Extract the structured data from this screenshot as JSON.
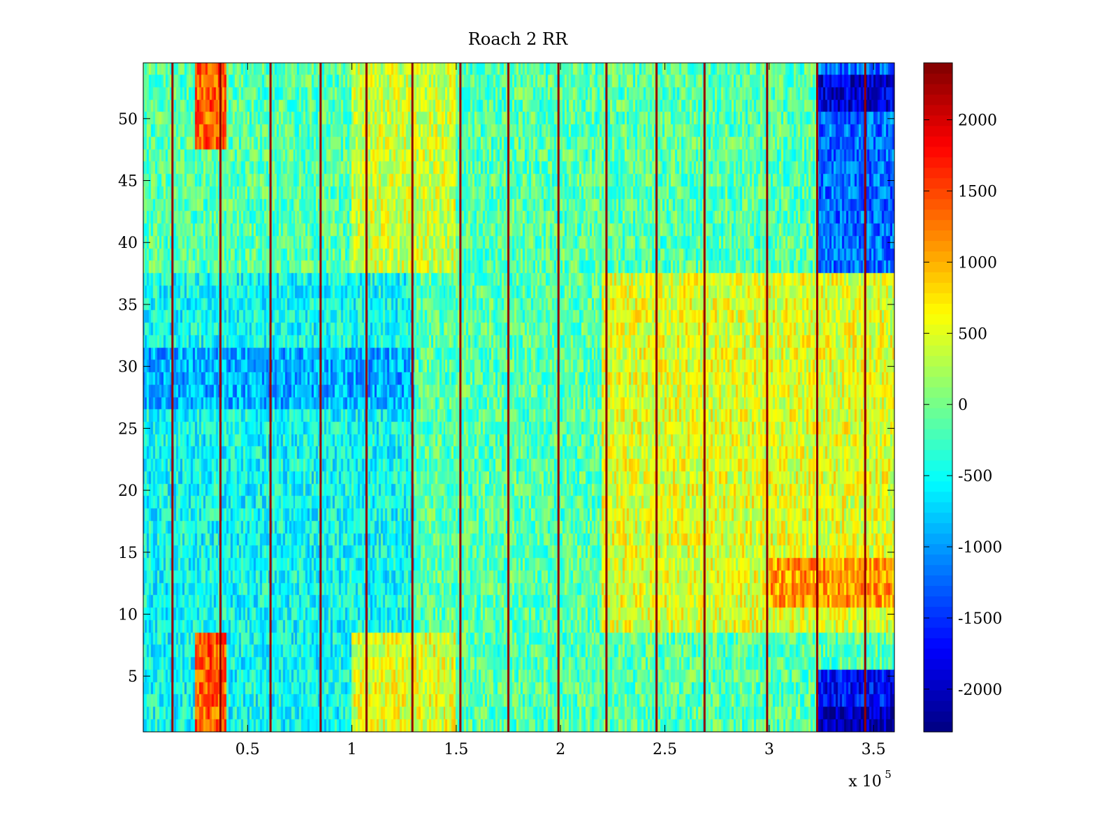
{
  "chart_data": {
    "type": "heatmap",
    "title": "Roach 2 RR",
    "xlabel": "",
    "ylabel": "",
    "x_exponent_label": "x 10",
    "x_exponent": "5",
    "xlim": [
      0.0,
      3.6
    ],
    "ylim": [
      0.5,
      54.5
    ],
    "x_ticks": [
      0.5,
      1,
      1.5,
      2,
      2.5,
      3,
      3.5
    ],
    "x_tick_labels": [
      "0.5",
      "1",
      "1.5",
      "2",
      "2.5",
      "3",
      "3.5"
    ],
    "y_ticks": [
      5,
      10,
      15,
      20,
      25,
      30,
      35,
      40,
      45,
      50
    ],
    "y_tick_labels": [
      "5",
      "10",
      "15",
      "20",
      "25",
      "30",
      "35",
      "40",
      "45",
      "50"
    ],
    "rows": 54,
    "colorbar": {
      "colormap": "jet",
      "clim": [
        -2300,
        2400
      ],
      "ticks": [
        -2000,
        -1500,
        -1000,
        -500,
        0,
        500,
        1000,
        1500,
        2000
      ],
      "tick_labels": [
        "-2000",
        "-1500",
        "-1000",
        "-500",
        "0",
        "500",
        "1000",
        "1500",
        "2000"
      ]
    },
    "vertical_stripe_x": [
      0.14,
      0.37,
      0.61,
      0.85,
      1.07,
      1.29,
      1.52,
      1.75,
      1.99,
      2.22,
      2.46,
      2.69,
      2.99,
      3.23,
      3.46
    ],
    "stripe_value": 2300,
    "regions": [
      {
        "name": "left-band-low",
        "x": [
          0.0,
          1.3
        ],
        "y": [
          0.5,
          37.5
        ],
        "value": -500
      },
      {
        "name": "low-rows-left",
        "x": [
          0.0,
          1.3
        ],
        "y": [
          27.0,
          31.5
        ],
        "value": -900
      },
      {
        "name": "hot-top-left",
        "x": [
          0.25,
          0.4
        ],
        "y": [
          47.5,
          54.5
        ],
        "value": 1400
      },
      {
        "name": "hot-bottom-left",
        "x": [
          0.25,
          0.4
        ],
        "y": [
          0.5,
          8.5
        ],
        "value": 1400
      },
      {
        "name": "warm-top-mid",
        "x": [
          1.0,
          1.5
        ],
        "y": [
          37.5,
          54.5
        ],
        "value": 400
      },
      {
        "name": "warm-bottom-mid",
        "x": [
          1.0,
          1.5
        ],
        "y": [
          0.5,
          8.5
        ],
        "value": 500
      },
      {
        "name": "warm-right-mid",
        "x": [
          2.2,
          3.6
        ],
        "y": [
          8.5,
          37.5
        ],
        "value": 500
      },
      {
        "name": "hot-right-rows",
        "x": [
          3.0,
          3.6
        ],
        "y": [
          10.5,
          14.5
        ],
        "value": 1100
      },
      {
        "name": "cold-top-right",
        "x": [
          3.23,
          3.6
        ],
        "y": [
          37.5,
          54.5
        ],
        "value": -1200
      },
      {
        "name": "very-cold-top-right",
        "x": [
          3.23,
          3.6
        ],
        "y": [
          50.5,
          53.5
        ],
        "value": -1900
      },
      {
        "name": "cold-bottom-right",
        "x": [
          3.23,
          3.6
        ],
        "y": [
          0.5,
          5.5
        ],
        "value": -1700
      },
      {
        "name": "very-cold-bottom-right",
        "x": [
          3.23,
          3.6
        ],
        "y": [
          0.5,
          2.5
        ],
        "value": -2100
      }
    ],
    "baseline_value": -150,
    "noise_amplitude": 450
  }
}
